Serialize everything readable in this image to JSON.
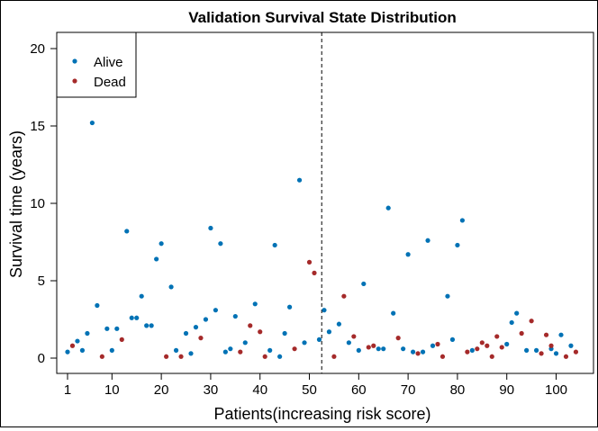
{
  "chart_data": {
    "type": "scatter",
    "title": "Validation Survival State Distribution",
    "xlabel": "Patients(increasing risk score)",
    "ylabel": "Survival time (years)",
    "xlim": [
      0,
      105
    ],
    "ylim": [
      -1,
      21
    ],
    "xticks": [
      1,
      10,
      20,
      30,
      40,
      50,
      60,
      70,
      80,
      90,
      100
    ],
    "yticks": [
      0,
      5,
      10,
      15,
      20
    ],
    "cutoff_x": 52.5,
    "legend": {
      "position": "top-left",
      "entries": [
        "Alive",
        "Dead"
      ]
    },
    "colors": {
      "Alive": "#0072b5",
      "Dead": "#a52a2a"
    },
    "series": [
      {
        "name": "Alive",
        "points": [
          [
            1,
            0.4
          ],
          [
            3,
            1.1
          ],
          [
            4,
            0.5
          ],
          [
            5,
            1.6
          ],
          [
            6,
            15.2
          ],
          [
            7,
            3.4
          ],
          [
            9,
            1.9
          ],
          [
            10,
            0.5
          ],
          [
            11,
            1.9
          ],
          [
            13,
            8.2
          ],
          [
            14,
            2.6
          ],
          [
            15,
            2.6
          ],
          [
            16,
            4.0
          ],
          [
            17,
            2.1
          ],
          [
            18,
            2.1
          ],
          [
            19,
            6.4
          ],
          [
            20,
            7.4
          ],
          [
            22,
            4.6
          ],
          [
            23,
            0.5
          ],
          [
            25,
            1.6
          ],
          [
            26,
            0.3
          ],
          [
            27,
            2.0
          ],
          [
            29,
            2.5
          ],
          [
            30,
            8.4
          ],
          [
            31,
            3.1
          ],
          [
            32,
            7.4
          ],
          [
            33,
            0.4
          ],
          [
            34,
            0.6
          ],
          [
            35,
            2.7
          ],
          [
            37,
            1.0
          ],
          [
            39,
            3.5
          ],
          [
            42,
            0.5
          ],
          [
            43,
            7.3
          ],
          [
            44,
            0.1
          ],
          [
            45,
            1.6
          ],
          [
            46,
            3.3
          ],
          [
            48,
            11.5
          ],
          [
            49,
            1.0
          ],
          [
            52,
            1.2
          ],
          [
            53,
            3.1
          ],
          [
            54,
            1.7
          ],
          [
            56,
            2.2
          ],
          [
            58,
            1.0
          ],
          [
            60,
            0.5
          ],
          [
            61,
            4.8
          ],
          [
            64,
            0.6
          ],
          [
            65,
            0.6
          ],
          [
            66,
            9.7
          ],
          [
            67,
            2.9
          ],
          [
            69,
            0.6
          ],
          [
            70,
            6.7
          ],
          [
            71,
            0.4
          ],
          [
            73,
            0.4
          ],
          [
            74,
            7.6
          ],
          [
            75,
            0.8
          ],
          [
            78,
            4.0
          ],
          [
            79,
            1.2
          ],
          [
            80,
            7.3
          ],
          [
            81,
            8.9
          ],
          [
            83,
            0.5
          ],
          [
            90,
            0.9
          ],
          [
            91,
            2.3
          ],
          [
            92,
            2.9
          ],
          [
            94,
            0.5
          ],
          [
            96,
            0.5
          ],
          [
            99,
            0.6
          ],
          [
            100,
            0.3
          ],
          [
            101,
            1.5
          ],
          [
            103,
            0.8
          ]
        ]
      },
      {
        "name": "Dead",
        "points": [
          [
            2,
            0.8
          ],
          [
            8,
            0.1
          ],
          [
            12,
            1.2
          ],
          [
            21,
            0.1
          ],
          [
            24,
            0.1
          ],
          [
            28,
            1.3
          ],
          [
            36,
            0.4
          ],
          [
            38,
            2.1
          ],
          [
            40,
            1.7
          ],
          [
            41,
            0.1
          ],
          [
            47,
            0.6
          ],
          [
            50,
            6.2
          ],
          [
            51,
            5.5
          ],
          [
            55,
            0.1
          ],
          [
            57,
            4.0
          ],
          [
            59,
            1.4
          ],
          [
            62,
            0.7
          ],
          [
            63,
            0.8
          ],
          [
            68,
            1.3
          ],
          [
            72,
            0.3
          ],
          [
            76,
            0.9
          ],
          [
            77,
            0.1
          ],
          [
            82,
            0.4
          ],
          [
            84,
            0.6
          ],
          [
            85,
            1.0
          ],
          [
            86,
            0.8
          ],
          [
            87,
            0.1
          ],
          [
            88,
            1.4
          ],
          [
            89,
            0.7
          ],
          [
            93,
            1.6
          ],
          [
            95,
            2.4
          ],
          [
            97,
            0.3
          ],
          [
            98,
            1.5
          ],
          [
            99,
            0.8
          ],
          [
            102,
            0.1
          ],
          [
            104,
            0.4
          ]
        ]
      }
    ]
  }
}
